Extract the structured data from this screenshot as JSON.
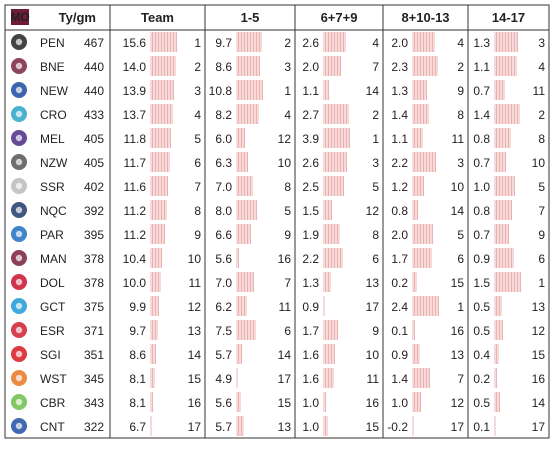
{
  "chart_data": {
    "type": "table",
    "badge": "MO",
    "headers": {
      "metric": "Ty/gm",
      "groups": [
        "Team",
        "1-5",
        "6+7+9",
        "8+10-13",
        "14-17"
      ]
    },
    "bar_color": "#e8a0a0",
    "rows": [
      {
        "team": "PEN",
        "logo": "panthers-logo",
        "tygm": "467",
        "cells": [
          [
            "15.6",
            "1"
          ],
          [
            "9.7",
            "2"
          ],
          [
            "2.6",
            "4"
          ],
          [
            "2.0",
            "4"
          ],
          [
            "1.3",
            "3"
          ]
        ]
      },
      {
        "team": "BNE",
        "logo": "broncos-logo",
        "tygm": "440",
        "cells": [
          [
            "14.0",
            "2"
          ],
          [
            "8.6",
            "3"
          ],
          [
            "2.0",
            "7"
          ],
          [
            "2.3",
            "2"
          ],
          [
            "1.1",
            "4"
          ]
        ]
      },
      {
        "team": "NEW",
        "logo": "knights-logo",
        "tygm": "440",
        "cells": [
          [
            "13.9",
            "3"
          ],
          [
            "10.8",
            "1"
          ],
          [
            "1.1",
            "14"
          ],
          [
            "1.3",
            "9"
          ],
          [
            "0.7",
            "11"
          ]
        ]
      },
      {
        "team": "CRO",
        "logo": "sharks-logo",
        "tygm": "433",
        "cells": [
          [
            "13.7",
            "4"
          ],
          [
            "8.2",
            "4"
          ],
          [
            "2.7",
            "2"
          ],
          [
            "1.4",
            "8"
          ],
          [
            "1.4",
            "2"
          ]
        ]
      },
      {
        "team": "MEL",
        "logo": "storm-logo",
        "tygm": "405",
        "cells": [
          [
            "11.8",
            "5"
          ],
          [
            "6.0",
            "12"
          ],
          [
            "3.9",
            "1"
          ],
          [
            "1.1",
            "11"
          ],
          [
            "0.8",
            "8"
          ]
        ]
      },
      {
        "team": "NZW",
        "logo": "warriors-logo",
        "tygm": "405",
        "cells": [
          [
            "11.7",
            "6"
          ],
          [
            "6.3",
            "10"
          ],
          [
            "2.6",
            "3"
          ],
          [
            "2.2",
            "3"
          ],
          [
            "0.7",
            "10"
          ]
        ]
      },
      {
        "team": "SSR",
        "logo": "dragons-logo",
        "tygm": "402",
        "cells": [
          [
            "11.6",
            "7"
          ],
          [
            "7.0",
            "8"
          ],
          [
            "2.5",
            "5"
          ],
          [
            "1.2",
            "10"
          ],
          [
            "1.0",
            "5"
          ]
        ]
      },
      {
        "team": "NQC",
        "logo": "cowboys-logo",
        "tygm": "392",
        "cells": [
          [
            "11.2",
            "8"
          ],
          [
            "8.0",
            "5"
          ],
          [
            "1.5",
            "12"
          ],
          [
            "0.8",
            "14"
          ],
          [
            "0.8",
            "7"
          ]
        ]
      },
      {
        "team": "PAR",
        "logo": "eels-logo",
        "tygm": "395",
        "cells": [
          [
            "11.2",
            "9"
          ],
          [
            "6.6",
            "9"
          ],
          [
            "1.9",
            "8"
          ],
          [
            "2.0",
            "5"
          ],
          [
            "0.7",
            "9"
          ]
        ]
      },
      {
        "team": "MAN",
        "logo": "sea-eagles-logo",
        "tygm": "378",
        "cells": [
          [
            "10.4",
            "10"
          ],
          [
            "5.6",
            "16"
          ],
          [
            "2.2",
            "6"
          ],
          [
            "1.7",
            "6"
          ],
          [
            "0.9",
            "6"
          ]
        ]
      },
      {
        "team": "DOL",
        "logo": "dolphins-logo",
        "tygm": "378",
        "cells": [
          [
            "10.0",
            "11"
          ],
          [
            "7.0",
            "7"
          ],
          [
            "1.3",
            "13"
          ],
          [
            "0.2",
            "15"
          ],
          [
            "1.5",
            "1"
          ]
        ]
      },
      {
        "team": "GCT",
        "logo": "titans-logo",
        "tygm": "375",
        "cells": [
          [
            "9.9",
            "12"
          ],
          [
            "6.2",
            "11"
          ],
          [
            "0.9",
            "17"
          ],
          [
            "2.4",
            "1"
          ],
          [
            "0.5",
            "13"
          ]
        ]
      },
      {
        "team": "ESR",
        "logo": "roosters-logo",
        "tygm": "371",
        "cells": [
          [
            "9.7",
            "13"
          ],
          [
            "7.5",
            "6"
          ],
          [
            "1.7",
            "9"
          ],
          [
            "0.1",
            "16"
          ],
          [
            "0.5",
            "12"
          ]
        ]
      },
      {
        "team": "SGI",
        "logo": "dragons-red-logo",
        "tygm": "351",
        "cells": [
          [
            "8.6",
            "14"
          ],
          [
            "5.7",
            "14"
          ],
          [
            "1.6",
            "10"
          ],
          [
            "0.9",
            "13"
          ],
          [
            "0.4",
            "15"
          ]
        ]
      },
      {
        "team": "WST",
        "logo": "tigers-logo",
        "tygm": "345",
        "cells": [
          [
            "8.1",
            "15"
          ],
          [
            "4.9",
            "17"
          ],
          [
            "1.6",
            "11"
          ],
          [
            "1.4",
            "7"
          ],
          [
            "0.2",
            "16"
          ]
        ]
      },
      {
        "team": "CBR",
        "logo": "raiders-logo",
        "tygm": "343",
        "cells": [
          [
            "8.1",
            "16"
          ],
          [
            "5.6",
            "15"
          ],
          [
            "1.0",
            "16"
          ],
          [
            "1.0",
            "12"
          ],
          [
            "0.5",
            "14"
          ]
        ]
      },
      {
        "team": "CNT",
        "logo": "bulldogs-logo",
        "tygm": "322",
        "cells": [
          [
            "6.7",
            "17"
          ],
          [
            "5.7",
            "13"
          ],
          [
            "1.0",
            "15"
          ],
          [
            "-0.2",
            "17"
          ],
          [
            "0.1",
            "17"
          ]
        ]
      }
    ]
  }
}
